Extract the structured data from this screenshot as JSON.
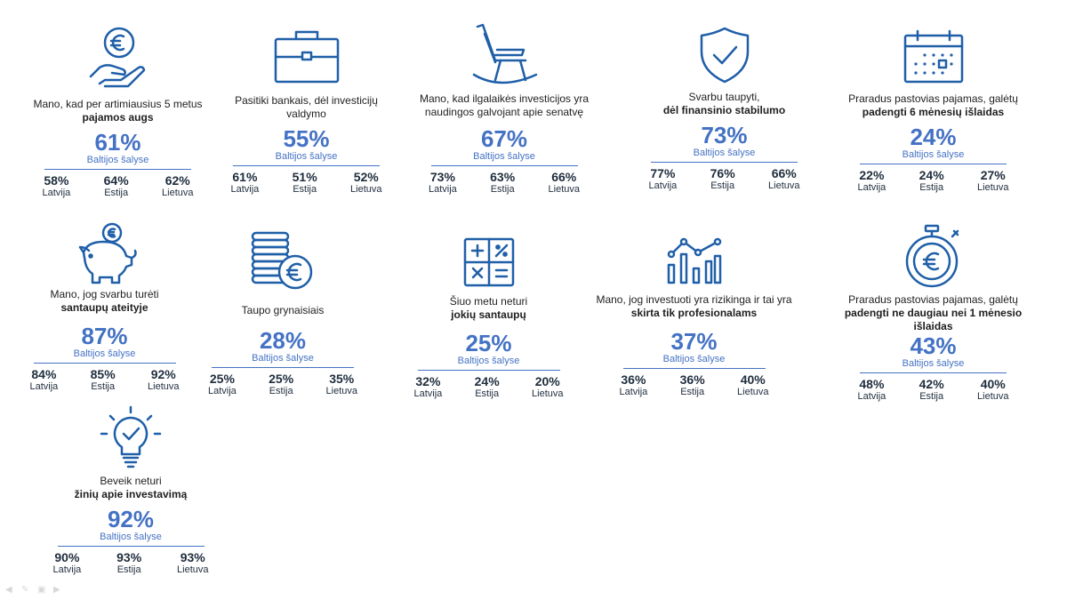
{
  "cards": [
    {
      "desc": "Mano, kad per artimiausius 5 metus",
      "desc_bold": "pajamos augs",
      "icon": "euro-hand-icon",
      "value": "61%",
      "region": "Baltijos šalyse",
      "countries": [
        {
          "pct": "58%",
          "name": "Latvija"
        },
        {
          "pct": "64%",
          "name": "Estija"
        },
        {
          "pct": "62%",
          "name": "Lietuva"
        }
      ]
    },
    {
      "desc": "Pasitiki bankais, dėl investicijų valdymo",
      "desc_bold": "",
      "icon": "briefcase-icon",
      "value": "55%",
      "region": "Baltijos šalyse",
      "countries": [
        {
          "pct": "61%",
          "name": "Latvija"
        },
        {
          "pct": "51%",
          "name": "Estija"
        },
        {
          "pct": "52%",
          "name": "Lietuva"
        }
      ]
    },
    {
      "desc": "Mano, kad ilgalaikės investicijos yra naudingos galvojant apie senatvę",
      "desc_bold": "",
      "icon": "rocking-chair-icon",
      "value": "67%",
      "region": "Baltijos šalyse",
      "countries": [
        {
          "pct": "73%",
          "name": "Latvija"
        },
        {
          "pct": "63%",
          "name": "Estija"
        },
        {
          "pct": "66%",
          "name": "Lietuva"
        }
      ]
    },
    {
      "desc": "Svarbu taupyti,",
      "desc_bold": "dėl finansinio stabilumo",
      "icon": "shield-check-icon",
      "value": "73%",
      "region": "Baltijos šalyse",
      "countries": [
        {
          "pct": "77%",
          "name": "Latvija"
        },
        {
          "pct": "76%",
          "name": "Estija"
        },
        {
          "pct": "66%",
          "name": "Lietuva"
        }
      ]
    },
    {
      "desc": "Praradus pastovias pajamas, galėtų",
      "desc_bold": "padengti 6 mėnesių išlaidas",
      "icon": "calendar-icon",
      "value": "24%",
      "region": "Baltijos šalyse",
      "countries": [
        {
          "pct": "22%",
          "name": "Latvija"
        },
        {
          "pct": "24%",
          "name": "Estija"
        },
        {
          "pct": "27%",
          "name": "Lietuva"
        }
      ]
    },
    {
      "desc": "Mano, jog svarbu turėti",
      "desc_bold": "santaupų ateityje",
      "icon": "piggy-bank-icon",
      "value": "87%",
      "region": "Baltijos šalyse",
      "countries": [
        {
          "pct": "84%",
          "name": "Latvija"
        },
        {
          "pct": "85%",
          "name": "Estija"
        },
        {
          "pct": "92%",
          "name": "Lietuva"
        }
      ]
    },
    {
      "desc": "Taupo grynaisiais",
      "desc_bold": "",
      "icon": "coin-stack-icon",
      "value": "28%",
      "region": "Baltijos šalyse",
      "countries": [
        {
          "pct": "25%",
          "name": "Latvija"
        },
        {
          "pct": "25%",
          "name": "Estija"
        },
        {
          "pct": "35%",
          "name": "Lietuva"
        }
      ]
    },
    {
      "desc": "Šiuo metu neturi",
      "desc_bold": "jokių santaupų",
      "icon": "calculator-icon",
      "value": "25%",
      "region": "Baltijos šalyse",
      "countries": [
        {
          "pct": "32%",
          "name": "Latvija"
        },
        {
          "pct": "24%",
          "name": "Estija"
        },
        {
          "pct": "20%",
          "name": "Lietuva"
        }
      ]
    },
    {
      "desc": "Mano, jog investuoti yra rizikinga ir tai yra",
      "desc_bold": "skirta tik profesionalams",
      "icon": "chart-icon",
      "value": "37%",
      "region": "Baltijos šalyse",
      "countries": [
        {
          "pct": "36%",
          "name": "Latvija"
        },
        {
          "pct": "36%",
          "name": "Estija"
        },
        {
          "pct": "40%",
          "name": "Lietuva"
        }
      ]
    },
    {
      "desc": "Praradus pastovias pajamas, galėtų",
      "desc_bold": "padengti ne daugiau nei 1 mėnesio išlaidas",
      "icon": "euro-stopwatch-icon",
      "value": "43%",
      "region": "Baltijos šalyse",
      "countries": [
        {
          "pct": "48%",
          "name": "Latvija"
        },
        {
          "pct": "42%",
          "name": "Estija"
        },
        {
          "pct": "40%",
          "name": "Lietuva"
        }
      ]
    },
    {
      "desc": "Beveik neturi",
      "desc_bold": "žinių apie investavimą",
      "icon": "lightbulb-check-icon",
      "value": "92%",
      "region": "Baltijos šalyse",
      "countries": [
        {
          "pct": "90%",
          "name": "Latvija"
        },
        {
          "pct": "93%",
          "name": "Estija"
        },
        {
          "pct": "93%",
          "name": "Lietuva"
        }
      ]
    }
  ],
  "colors": {
    "accent": "#4472c4",
    "icon": "#1f5fa8",
    "text": "#1f2d3d"
  }
}
